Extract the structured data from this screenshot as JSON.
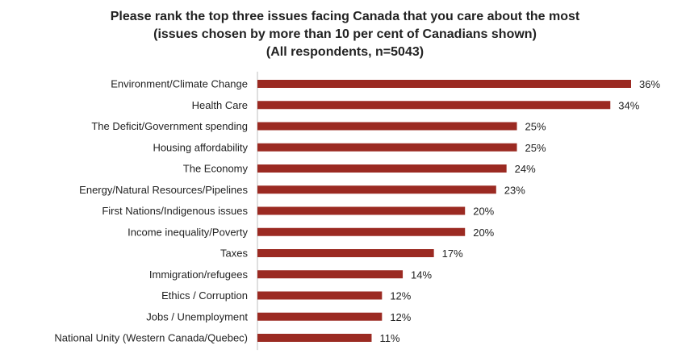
{
  "chart_data": {
    "type": "bar",
    "orientation": "horizontal",
    "title": [
      "Please rank the top three issues facing Canada that you care about the most",
      "(issues chosen by more than 10 per cent of Canadians shown)",
      "(All respondents, n=5043)"
    ],
    "categories": [
      "Environment/Climate Change",
      "Health Care",
      "The Deficit/Government spending",
      "Housing affordability",
      "The Economy",
      "Energy/Natural Resources/Pipelines",
      "First Nations/Indigenous issues",
      "Income inequality/Poverty",
      "Taxes",
      "Immigration/refugees",
      "Ethics / Corruption",
      "Jobs / Unemployment",
      "National Unity (Western Canada/Quebec)"
    ],
    "values": [
      36,
      34,
      25,
      25,
      24,
      23,
      20,
      20,
      17,
      14,
      12,
      12,
      11
    ],
    "value_labels": [
      "36%",
      "34%",
      "25%",
      "25%",
      "24%",
      "23%",
      "20%",
      "20%",
      "17%",
      "14%",
      "12%",
      "12%",
      "11%"
    ],
    "xlim": [
      0,
      36
    ],
    "bar_color": "#9b2a22",
    "axis_color": "#bfbfbf",
    "grid": false,
    "legend": "none"
  }
}
